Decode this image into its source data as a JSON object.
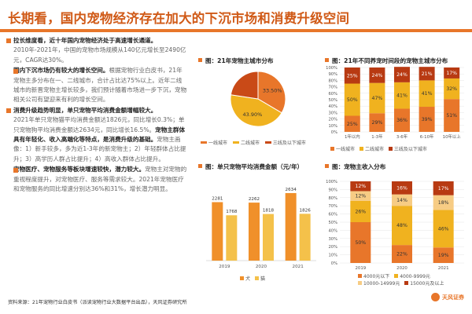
{
  "page": {
    "title": "长期看，国内宠物经济存在加大的下沉市场和消费升级空间",
    "source": "资料来源：21年宠物行业白皮书（派读宠物行业大数据平台出品），天风证券研究所",
    "brand": "天风证券"
  },
  "left": {
    "b1_head": "拉长维度看，近十年国内宠物经济处于高速增长通道。",
    "b1_text": "2010年-2021年，中国的宠物市场规模从140亿元增长至2490亿元，CAGR达30%。",
    "b2_head": "国内下沉市场仍有较大的增长空间。",
    "b2_text": "根据宠物行业白皮书，21年宠物主多分布在一、二线城市，合计占比达75%以上。近年二线城市的新晋宠物主增长较多，我们预计随着市场进一步下沉，宠物相关公司有望迎来有利的增长空间。",
    "b3_head": "消费升级趋势明显，单只宠物平均消费金额增幅较大。",
    "b3_text1": "2021年单只宠物猫平均消费金额达1826元，同比增长0.3%；单只宠物狗平均消费金额达2634元，同比增长16.5%。",
    "b3_bold": "宠物主群体具有年轻化、收入高端化等特点，是消费升级的基础。",
    "b3_text2": "宠物主画像：1）新手较多，多为近1-3年的新宠物主；2）年轻群体占比提升；3）高学历人群占比提升；4）高收入群体占比提升。",
    "b4_head": "宠物医疗、宠物服务等板块增速较快，潜力较大。",
    "b4_text": "宠物主对宠物的重视程度提升，对宠物医疗、服务等需求较大。2021年宠物医疗和宠物服务的同比增速分别达36%和31%，增长潜力明显。"
  },
  "panels": {
    "pie_title": "图：21年宠物主城市分布",
    "stack1_title": "图：21年不同养宠时间段的宠物主城市分布",
    "bar_title": "图：单只宠物平均消费金额（元/年）",
    "stack2_title": "图：宠物主收入分布"
  },
  "legends": {
    "pie": [
      "一线城市",
      "二线城市",
      "三线及以下城市"
    ],
    "stack1": [
      "一线城市",
      "二线城市",
      "三线及以下城市"
    ],
    "bar": [
      "犬",
      "猫"
    ],
    "stack2": [
      "4000元以下",
      "4000-9999元",
      "10000-14999元",
      "15000元及以上"
    ]
  },
  "colors": {
    "accent": "#e8762a",
    "dark_orange": "#d05a17",
    "pie": [
      "#e8762a",
      "#f0b21f",
      "#c94a17"
    ],
    "stack1": [
      "#e8762a",
      "#f0b21f",
      "#b83a12"
    ],
    "bar": [
      "#f0902a",
      "#f4c14a"
    ],
    "stack2": [
      "#e8762a",
      "#f0b21f",
      "#f7cc84",
      "#b83a12"
    ]
  },
  "chart_data": [
    {
      "type": "pie",
      "title": "图：21年宠物主城市分布",
      "categories": [
        "一线城市",
        "二线城市",
        "三线及以下城市"
      ],
      "values": [
        33.5,
        43.9,
        22.6
      ],
      "labels": [
        "33.50%",
        "43.90%",
        ""
      ]
    },
    {
      "type": "bar",
      "stacked": true,
      "title": "图：21年不同养宠时间段的宠物主城市分布",
      "categories": [
        "1年以内",
        "1-3年",
        "3-6年",
        "6-10年",
        "10年以上"
      ],
      "series": [
        {
          "name": "一线城市",
          "values": [
            25,
            29,
            36,
            39,
            51
          ]
        },
        {
          "name": "二线城市",
          "values": [
            50,
            47,
            41,
            41,
            32
          ]
        },
        {
          "name": "三线及以下城市",
          "values": [
            25,
            24,
            24,
            21,
            17
          ]
        }
      ],
      "ylim": [
        0,
        100
      ],
      "yticks": [
        "0%",
        "10%",
        "20%",
        "30%",
        "40%",
        "50%",
        "60%",
        "70%",
        "80%",
        "90%",
        "100%"
      ]
    },
    {
      "type": "bar",
      "title": "图：单只宠物平均消费金额（元/年）",
      "categories": [
        "2019",
        "2020",
        "2021"
      ],
      "series": [
        {
          "name": "犬",
          "values": [
            2281,
            2262,
            2634
          ]
        },
        {
          "name": "猫",
          "values": [
            1768,
            1818,
            1826
          ]
        }
      ],
      "ylim": [
        0,
        3000
      ],
      "yticks": [
        "0",
        "500",
        "1000",
        "1500",
        "2000",
        "2500",
        "3000"
      ]
    },
    {
      "type": "bar",
      "stacked": true,
      "title": "图：宠物主收入分布",
      "categories": [
        "2019",
        "2020",
        "2021"
      ],
      "series": [
        {
          "name": "4000元以下",
          "values": [
            50,
            22,
            19
          ]
        },
        {
          "name": "4000-9999元",
          "values": [
            26,
            48,
            46
          ]
        },
        {
          "name": "10000-14999元",
          "values": [
            12,
            14,
            18
          ]
        },
        {
          "name": "15000元及以上",
          "values": [
            12,
            16,
            17
          ]
        }
      ],
      "ylim": [
        0,
        100
      ],
      "yticks": [
        "0%",
        "10%",
        "20%",
        "30%",
        "40%",
        "50%",
        "60%",
        "70%",
        "80%",
        "90%",
        "100%"
      ]
    }
  ]
}
